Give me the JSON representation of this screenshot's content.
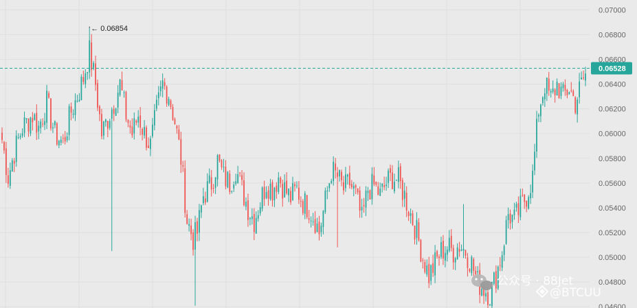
{
  "chart_data": {
    "type": "candlestick",
    "ylim": [
      0.0459,
      0.0708
    ],
    "y_ticks": [
      "0.07000",
      "0.06800",
      "0.06600",
      "0.06400",
      "0.06200",
      "0.06000",
      "0.05800",
      "0.05600",
      "0.05400",
      "0.05200",
      "0.05000",
      "0.04800",
      "0.04600"
    ],
    "y_tick_values": [
      0.07,
      0.068,
      0.066,
      0.064,
      0.062,
      0.06,
      0.058,
      0.056,
      0.054,
      0.052,
      0.05,
      0.048,
      0.046
    ],
    "grid": true,
    "high_marker": {
      "label": "← 0.06854",
      "value": 0.06854,
      "index": 43
    },
    "last_price": {
      "label": "0.06528",
      "value": 0.06528
    },
    "colors": {
      "up": "#26a69a",
      "down": "#ef5350",
      "badge": "#26a69a",
      "background": "#eaeaea",
      "dashed_line": "#26a69a"
    },
    "low_value": 0.04608,
    "anchors": [
      [
        0,
        0.0595
      ],
      [
        3,
        0.0565
      ],
      [
        6,
        0.0585
      ],
      [
        10,
        0.0605
      ],
      [
        15,
        0.0615
      ],
      [
        18,
        0.0605
      ],
      [
        22,
        0.0625
      ],
      [
        26,
        0.06
      ],
      [
        30,
        0.0592
      ],
      [
        34,
        0.0618
      ],
      [
        37,
        0.063
      ],
      [
        40,
        0.0645
      ],
      [
        43,
        0.0666
      ],
      [
        46,
        0.064
      ],
      [
        49,
        0.06
      ],
      [
        52,
        0.0612
      ],
      [
        55,
        0.0625
      ],
      [
        58,
        0.064
      ],
      [
        61,
        0.0615
      ],
      [
        64,
        0.06
      ],
      [
        67,
        0.0615
      ],
      [
        70,
        0.06
      ],
      [
        73,
        0.059
      ],
      [
        76,
        0.0618
      ],
      [
        79,
        0.064
      ],
      [
        82,
        0.0632
      ],
      [
        85,
        0.061
      ],
      [
        88,
        0.058
      ],
      [
        91,
        0.053
      ],
      [
        94,
        0.0515
      ],
      [
        96,
        0.052
      ],
      [
        99,
        0.055
      ],
      [
        103,
        0.056
      ],
      [
        106,
        0.0578
      ],
      [
        109,
        0.0565
      ],
      [
        112,
        0.056
      ],
      [
        115,
        0.0572
      ],
      [
        118,
        0.0555
      ],
      [
        121,
        0.054
      ],
      [
        124,
        0.053
      ],
      [
        127,
        0.0545
      ],
      [
        130,
        0.056
      ],
      [
        133,
        0.0555
      ],
      [
        136,
        0.0565
      ],
      [
        139,
        0.0555
      ],
      [
        142,
        0.0548
      ],
      [
        145,
        0.0555
      ],
      [
        148,
        0.0545
      ],
      [
        151,
        0.054
      ],
      [
        154,
        0.053
      ],
      [
        156,
        0.052
      ],
      [
        159,
        0.0545
      ],
      [
        162,
        0.057
      ],
      [
        165,
        0.0565
      ],
      [
        168,
        0.0555
      ],
      [
        171,
        0.056
      ],
      [
        174,
        0.055
      ],
      [
        177,
        0.053
      ],
      [
        180,
        0.0555
      ],
      [
        183,
        0.0558
      ],
      [
        186,
        0.055
      ],
      [
        189,
        0.056
      ],
      [
        192,
        0.0565
      ],
      [
        195,
        0.0562
      ],
      [
        198,
        0.055
      ],
      [
        201,
        0.0535
      ],
      [
        204,
        0.052
      ],
      [
        207,
        0.05
      ],
      [
        210,
        0.0485
      ],
      [
        213,
        0.0495
      ],
      [
        216,
        0.0505
      ],
      [
        219,
        0.0508
      ],
      [
        222,
        0.0505
      ],
      [
        225,
        0.051
      ],
      [
        228,
        0.0505
      ],
      [
        231,
        0.0495
      ],
      [
        234,
        0.048
      ],
      [
        237,
        0.0475
      ],
      [
        240,
        0.047
      ],
      [
        243,
        0.0485
      ],
      [
        246,
        0.0505
      ],
      [
        249,
        0.0535
      ],
      [
        252,
        0.053
      ],
      [
        255,
        0.054
      ],
      [
        258,
        0.055
      ],
      [
        261,
        0.0565
      ],
      [
        264,
        0.062
      ],
      [
        267,
        0.064
      ],
      [
        270,
        0.0628
      ],
      [
        273,
        0.064
      ],
      [
        276,
        0.063
      ],
      [
        279,
        0.0637
      ],
      [
        282,
        0.0625
      ],
      [
        285,
        0.064
      ],
      [
        287,
        0.0648
      ]
    ]
  },
  "watermark": {
    "line1": "公众号 · 88Jet",
    "line2": "@BTCUU"
  }
}
